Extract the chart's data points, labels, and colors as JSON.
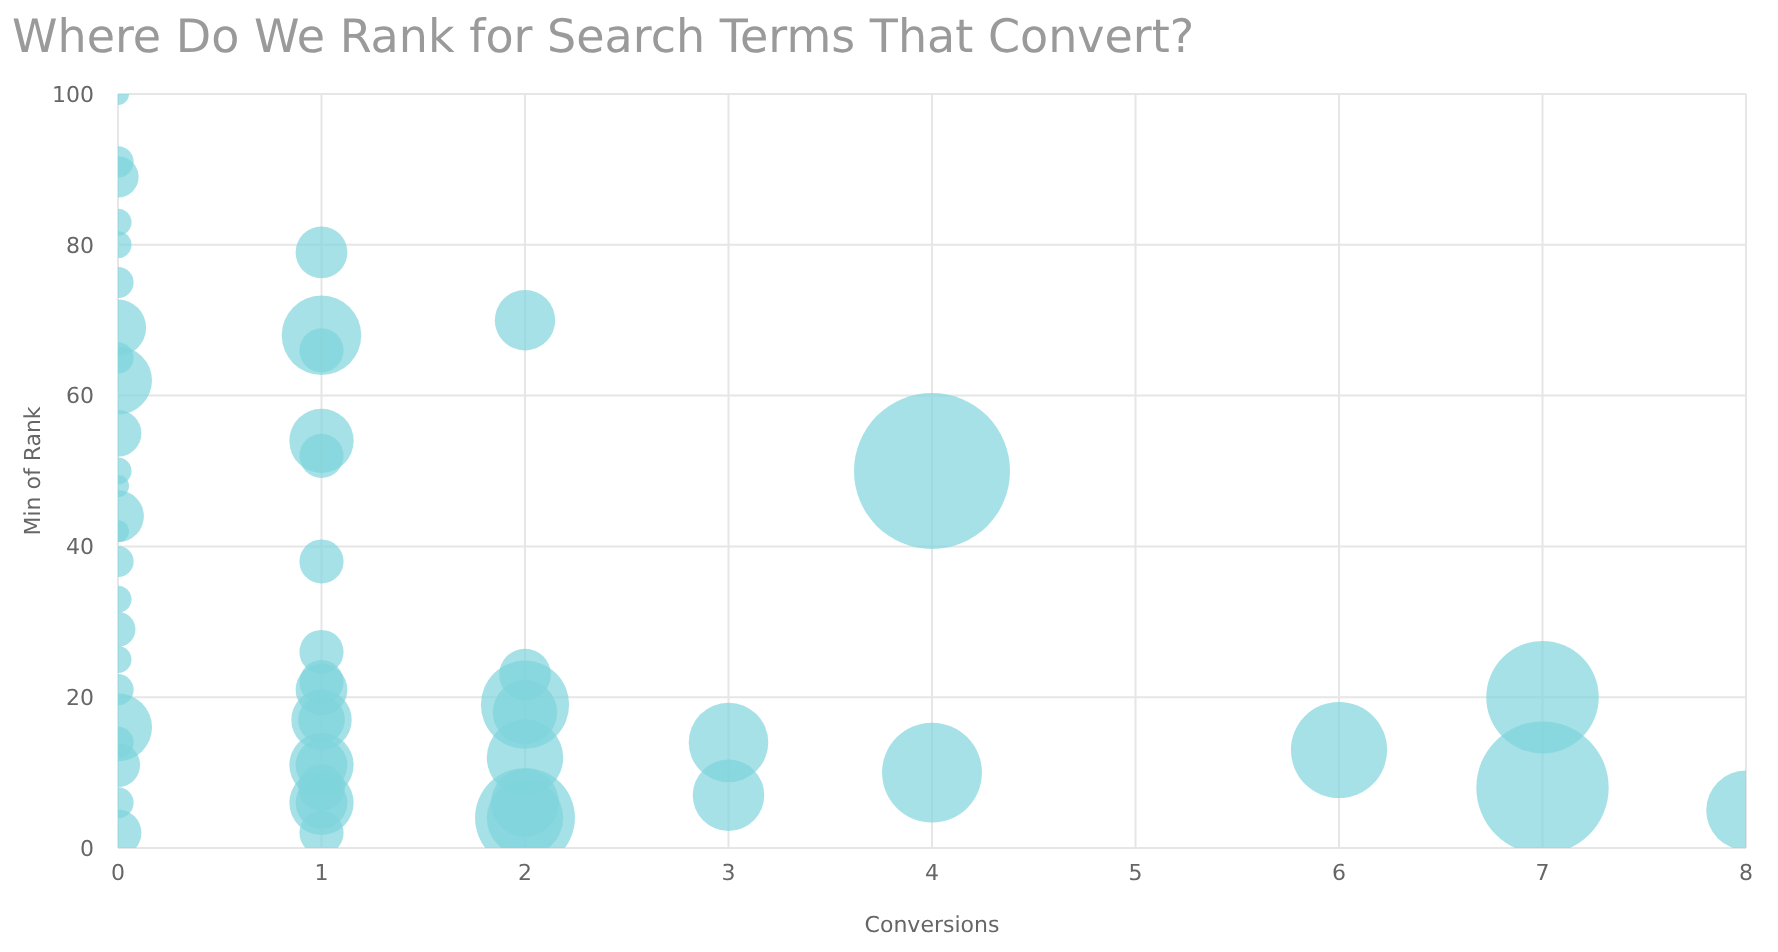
{
  "chart_data": {
    "type": "bubble",
    "title": "Where Do We Rank for Search Terms That Convert?",
    "xlabel": "Conversions",
    "ylabel": "Min of Rank",
    "color": "#7fd4dc",
    "grid": true,
    "x": [
      0,
      0,
      0,
      0,
      0,
      0,
      0,
      0,
      0,
      0,
      0,
      0,
      0,
      0,
      0,
      0,
      0,
      0,
      0,
      0,
      0,
      0,
      0,
      0,
      1,
      1,
      1,
      1,
      1,
      1,
      1,
      1,
      1,
      1,
      1,
      1,
      1,
      1,
      1,
      1,
      1,
      2,
      2,
      2,
      2,
      2,
      2,
      2,
      2,
      3,
      3,
      4,
      4,
      6,
      7,
      7,
      8
    ],
    "values": [
      100,
      91,
      89,
      83,
      80,
      75,
      69,
      65,
      62,
      55,
      50,
      48,
      44,
      42,
      38,
      33,
      29,
      25,
      21,
      16,
      14,
      11,
      6,
      2,
      79,
      68,
      66,
      54,
      52,
      38,
      26,
      22,
      21,
      17,
      17,
      11,
      11,
      8,
      6,
      6,
      2,
      70,
      23,
      19,
      18,
      12,
      6,
      4,
      4,
      14,
      7,
      50,
      10,
      13,
      20,
      8,
      5
    ],
    "sizes": [
      0.02,
      0.04,
      0.07,
      0.03,
      0.03,
      0.04,
      0.13,
      0.04,
      0.19,
      0.09,
      0.03,
      0.02,
      0.11,
      0.02,
      0.04,
      0.03,
      0.05,
      0.03,
      0.04,
      0.19,
      0.04,
      0.08,
      0.04,
      0.09,
      0.11,
      0.26,
      0.08,
      0.17,
      0.08,
      0.08,
      0.08,
      0.08,
      0.11,
      0.15,
      0.09,
      0.17,
      0.11,
      0.09,
      0.17,
      0.11,
      0.08,
      0.15,
      0.11,
      0.32,
      0.17,
      0.24,
      0.19,
      0.41,
      0.24,
      0.26,
      0.21,
      1,
      0.41,
      0.38,
      0.52,
      0.72,
      0.26
    ],
    "xlim": [
      0,
      8
    ],
    "xticks": [
      0,
      1,
      2,
      3,
      4,
      5,
      6,
      7,
      8
    ],
    "ylim": [
      0,
      100
    ],
    "yticks": [
      0,
      20,
      40,
      60,
      80,
      100
    ]
  }
}
